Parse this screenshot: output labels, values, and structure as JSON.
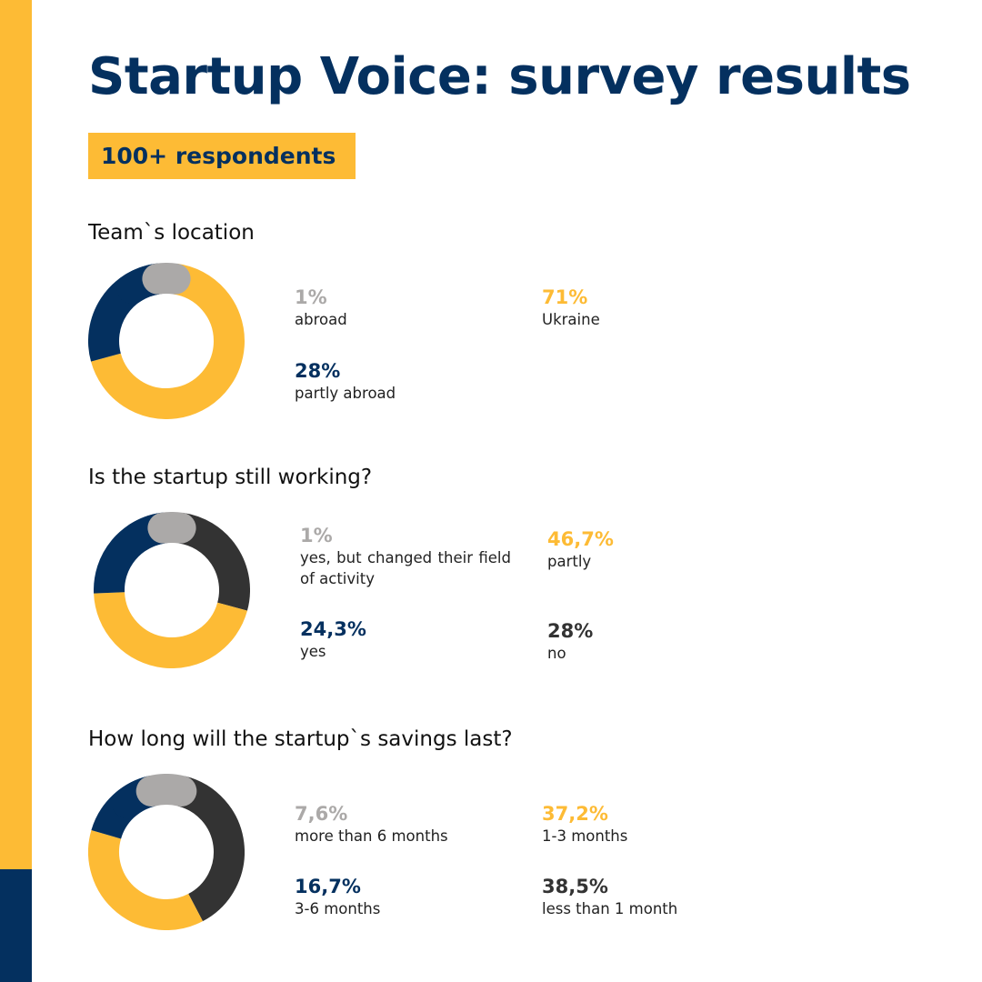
{
  "title": "Startup Voice: survey results",
  "badge": "100+ respondents",
  "colors": {
    "yellow": "#FDBB35",
    "navy": "#04305F",
    "gray": "#ABA9A8",
    "dark": "#333333"
  },
  "chart_data": [
    {
      "type": "pie",
      "title": "Team`s location",
      "slices": [
        {
          "label": "abroad",
          "value": 1,
          "display": "1%",
          "color": "#ABA9A8"
        },
        {
          "label": "Ukraine",
          "value": 71,
          "display": "71%",
          "color": "#FDBB35"
        },
        {
          "label": "partly abroad",
          "value": 28,
          "display": "28%",
          "color": "#04305F"
        }
      ]
    },
    {
      "type": "pie",
      "title": "Is the startup still working?",
      "slices": [
        {
          "label": "yes, but changed their field of activity",
          "value": 1,
          "display": "1%",
          "color": "#ABA9A8"
        },
        {
          "label": "partly",
          "value": 46.7,
          "display": "46,7%",
          "color": "#FDBB35"
        },
        {
          "label": "yes",
          "value": 24.3,
          "display": "24,3%",
          "color": "#04305F"
        },
        {
          "label": "no",
          "value": 28,
          "display": "28%",
          "color": "#333333"
        }
      ]
    },
    {
      "type": "pie",
      "title": "How long will the startup`s savings last?",
      "slices": [
        {
          "label": "more than 6 months",
          "value": 7.6,
          "display": "7,6%",
          "color": "#ABA9A8"
        },
        {
          "label": "1-3 months",
          "value": 37.2,
          "display": "37,2%",
          "color": "#FDBB35"
        },
        {
          "label": "3-6 months",
          "value": 16.7,
          "display": "16,7%",
          "color": "#04305F"
        },
        {
          "label": "less than 1 month",
          "value": 38.5,
          "display": "38,5%",
          "color": "#333333"
        }
      ]
    }
  ]
}
